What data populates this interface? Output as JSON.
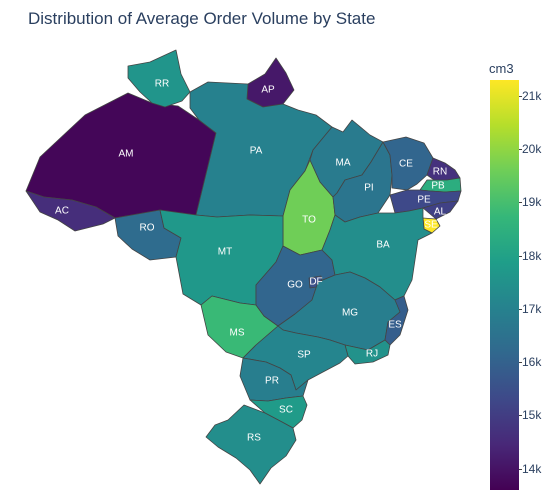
{
  "title": "Distribution of Average Order Volume by State",
  "chart_data": {
    "type": "choropleth",
    "title": "Distribution of Average Order Volume by State",
    "colorbar": {
      "title": "cm3",
      "min": 13600,
      "max": 21300,
      "ticks": [
        {
          "value": 14000,
          "label": "14k"
        },
        {
          "value": 15000,
          "label": "15k"
        },
        {
          "value": 16000,
          "label": "16k"
        },
        {
          "value": 17000,
          "label": "17k"
        },
        {
          "value": 18000,
          "label": "18k"
        },
        {
          "value": 19000,
          "label": "19k"
        },
        {
          "value": 20000,
          "label": "20k"
        },
        {
          "value": 21000,
          "label": "21k"
        }
      ],
      "colorscale": "viridis"
    },
    "states": [
      {
        "code": "AM",
        "value": 13700
      },
      {
        "code": "RR",
        "value": 17600
      },
      {
        "code": "AP",
        "value": 14100
      },
      {
        "code": "PA",
        "value": 17000
      },
      {
        "code": "AC",
        "value": 14600
      },
      {
        "code": "RO",
        "value": 16300
      },
      {
        "code": "MT",
        "value": 17700
      },
      {
        "code": "TO",
        "value": 19600
      },
      {
        "code": "MA",
        "value": 16800
      },
      {
        "code": "PI",
        "value": 16600
      },
      {
        "code": "CE",
        "value": 16100
      },
      {
        "code": "RN",
        "value": 14700
      },
      {
        "code": "PB",
        "value": 18400
      },
      {
        "code": "PE",
        "value": 15300
      },
      {
        "code": "AL",
        "value": 15100
      },
      {
        "code": "SE",
        "value": 21300
      },
      {
        "code": "BA",
        "value": 17400
      },
      {
        "code": "GO",
        "value": 16100
      },
      {
        "code": "DF",
        "value": 15500
      },
      {
        "code": "MG",
        "value": 16900
      },
      {
        "code": "ES",
        "value": 15900
      },
      {
        "code": "RJ",
        "value": 17500
      },
      {
        "code": "MS",
        "value": 18800
      },
      {
        "code": "SP",
        "value": 17100
      },
      {
        "code": "PR",
        "value": 16900
      },
      {
        "code": "SC",
        "value": 17800
      },
      {
        "code": "RS",
        "value": 17400
      }
    ]
  }
}
